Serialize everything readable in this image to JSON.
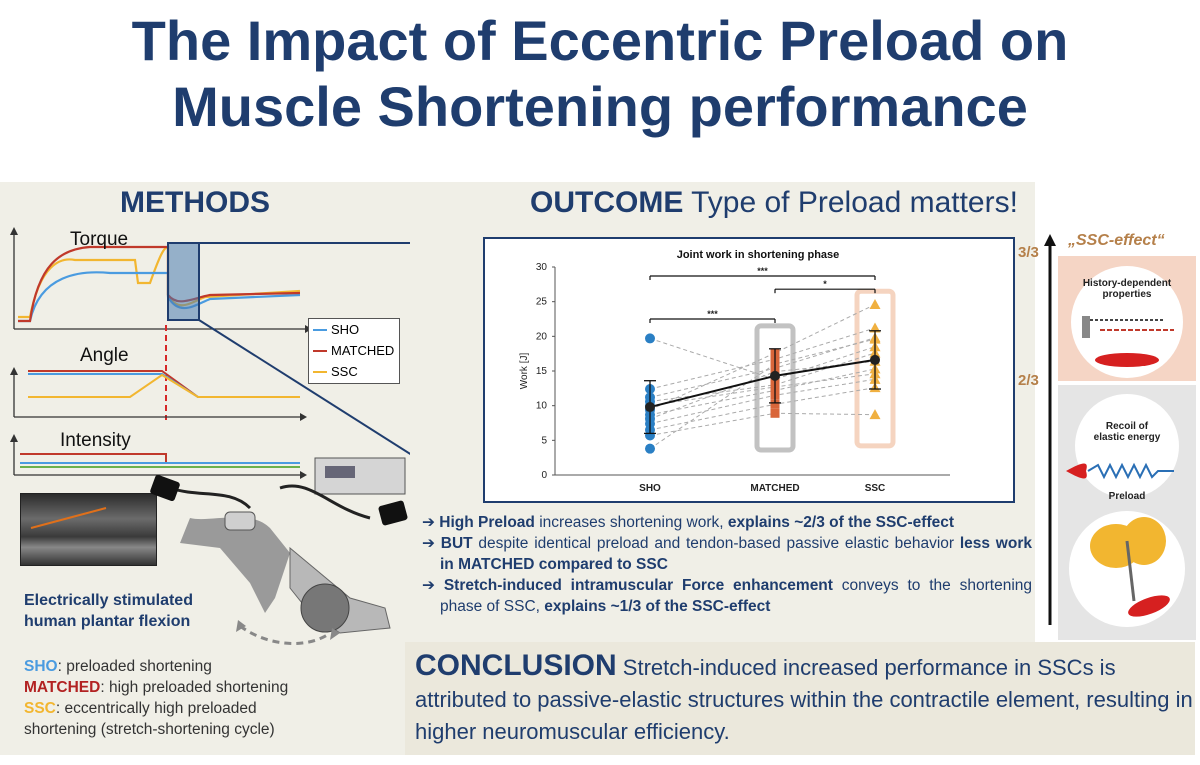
{
  "title": {
    "line1": "The Impact of Eccentric Preload on",
    "line2": "Muscle Shortening performance"
  },
  "methods": {
    "heading": "METHODS",
    "panel_labels": {
      "torque": "Torque",
      "angle": "Angle",
      "intensity": "Intensity"
    },
    "legend": [
      {
        "label": "SHO",
        "color": "#4a9be0"
      },
      {
        "label": "MATCHED",
        "color": "#c0392b"
      },
      {
        "label": "SSC",
        "color": "#f2b630"
      }
    ],
    "caption_line1": "Electrically stimulated",
    "caption_line2": "human plantar flexion",
    "definitions": [
      {
        "term": "SHO",
        "text": ": preloaded shortening",
        "color": "#4a9be0"
      },
      {
        "term": "MATCHED",
        "text": ": high preloaded shortening",
        "color": "#b22222"
      },
      {
        "term": "SSC",
        "text": ": eccentrically high preloaded",
        "color": "#f2b630"
      }
    ],
    "definition_cont": "shortening (stretch-shortening cycle)"
  },
  "outcome": {
    "heading_bold": "OUTCOME",
    "heading_rest": " Type of Preload matters!",
    "bullets": [
      {
        "bold1": "High Preload",
        "text1": " increases shortening work, ",
        "bold2": "explains ~2/3 of the SSC-effect",
        "text2": ""
      },
      {
        "bold1": "BUT",
        "text1": " despite identical preload and tendon-based passive elastic behavior ",
        "bold2": "less work in MATCHED compared to SSC",
        "text2": ""
      },
      {
        "bold1": "Stretch-induced intramuscular Force enhancement",
        "text1": " conveys to the shortening phase of SSC, ",
        "bold2": "explains ~1/3 of the SSC-effect",
        "text2": ""
      }
    ]
  },
  "chart_data": {
    "type": "scatter",
    "title": "Joint work in shortening phase",
    "xlabel": "",
    "ylabel": "Work [J]",
    "categories": [
      "SHO",
      "MATCHED",
      "SSC"
    ],
    "ylim": [
      0,
      30
    ],
    "yticks": [
      0,
      5,
      10,
      15,
      20,
      25,
      30
    ],
    "means": [
      9.8,
      14.3,
      16.6
    ],
    "sd": [
      3.8,
      3.9,
      4.2
    ],
    "subjects": [
      [
        19.7,
        13.8,
        18.5
      ],
      [
        12.4,
        16.7,
        21.2
      ],
      [
        11.2,
        15.4,
        19.8
      ],
      [
        10.6,
        13.0,
        17.6
      ],
      [
        9.4,
        17.6,
        24.6
      ],
      [
        8.7,
        12.2,
        15.3
      ],
      [
        8.1,
        14.9,
        16.4
      ],
      [
        7.4,
        11.5,
        13.8
      ],
      [
        6.5,
        10.2,
        12.6
      ],
      [
        5.7,
        8.9,
        8.7
      ],
      [
        3.8,
        16.0,
        19.6
      ],
      [
        10.0,
        12.7,
        14.6
      ]
    ],
    "significance": [
      {
        "from": "SHO",
        "to": "MATCHED",
        "label": "***"
      },
      {
        "from": "SHO",
        "to": "SSC",
        "label": "***"
      },
      {
        "from": "MATCHED",
        "to": "SSC",
        "label": "*"
      }
    ],
    "colors": {
      "SHO": "#2a7fc4",
      "MATCHED": "#d9663a",
      "SSC": "#f0b040"
    }
  },
  "ssc_panel": {
    "title": "„SSC-effect“",
    "level_top": "3/3",
    "level_mid": "2/3",
    "box1": "History-dependent properties",
    "box2_line1": "Recoil of",
    "box2_line2": "elastic energy",
    "box3": "Preload"
  },
  "conclusion": {
    "bold": "CONCLUSION",
    "text": " Stretch-induced increased performance in SSCs is attributed to passive-elastic structures within the contractile element, resulting in higher neuromuscular efficiency."
  }
}
